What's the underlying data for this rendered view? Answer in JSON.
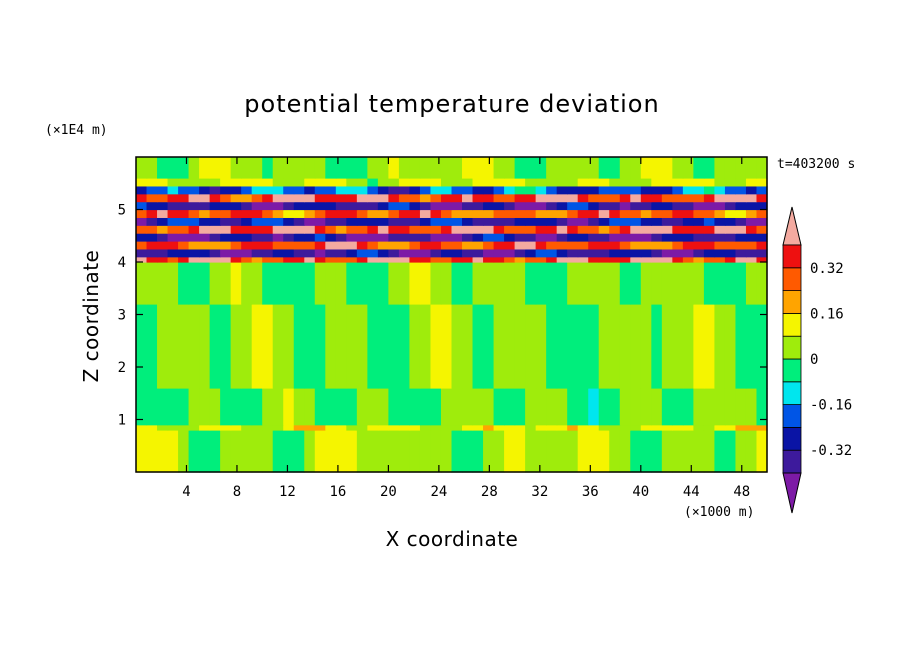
{
  "chart_data": {
    "type": "heatmap",
    "title": "potential temperature deviation",
    "xlabel": "X coordinate",
    "ylabel": "Z coordinate",
    "x_unit": "(×1000 m)",
    "y_unit": "(×1E4 m)",
    "time_label": "t=403200 s",
    "xlim": [
      0,
      50
    ],
    "ylim": [
      0,
      6
    ],
    "x_ticks": [
      4,
      8,
      12,
      16,
      20,
      24,
      28,
      32,
      36,
      40,
      44,
      48
    ],
    "y_ticks": [
      1,
      2,
      3,
      4,
      5
    ],
    "colorbar": {
      "levels": [
        -0.4,
        -0.32,
        -0.24,
        -0.16,
        -0.08,
        0,
        0.08,
        0.16,
        0.24,
        0.32,
        0.4
      ],
      "tick_labels": [
        "-0.32",
        "-0.16",
        "0",
        "0.16",
        "0.32"
      ],
      "tick_values": [
        -0.32,
        -0.16,
        0,
        0.16,
        0.32
      ],
      "colors": [
        "#7d1aa6",
        "#3d1a9c",
        "#0a14a5",
        "#0055e6",
        "#00e6ee",
        "#00ee7c",
        "#9fec0c",
        "#f5f500",
        "#ffa400",
        "#ff5a00",
        "#ee1010",
        "#f4aaa0"
      ]
    },
    "bands": [
      {
        "z": [
          0.0,
          0.8
        ],
        "value": 0.04
      },
      {
        "z": [
          0.8,
          0.9
        ],
        "value": 0.1
      },
      {
        "z": [
          0.9,
          1.6
        ],
        "value": 0.0
      },
      {
        "z": [
          1.6,
          3.2
        ],
        "value": 0.02
      },
      {
        "z": [
          3.2,
          4.0
        ],
        "value": 0.01
      },
      {
        "z": [
          4.0,
          4.1
        ],
        "value": 0.36
      },
      {
        "z": [
          4.1,
          4.25
        ],
        "value": -0.34
      },
      {
        "z": [
          4.25,
          4.4
        ],
        "value": 0.3
      },
      {
        "z": [
          4.4,
          4.55
        ],
        "value": -0.36
      },
      {
        "z": [
          4.55,
          4.7
        ],
        "value": 0.36
      },
      {
        "z": [
          4.7,
          4.85
        ],
        "value": -0.3
      },
      {
        "z": [
          4.85,
          5.0
        ],
        "value": 0.28
      },
      {
        "z": [
          5.0,
          5.15
        ],
        "value": -0.34
      },
      {
        "z": [
          5.15,
          5.3
        ],
        "value": 0.36
      },
      {
        "z": [
          5.3,
          5.45
        ],
        "value": -0.2
      },
      {
        "z": [
          5.45,
          5.6
        ],
        "value": 0.08
      },
      {
        "z": [
          5.6,
          6.0
        ],
        "value": 0.03
      }
    ]
  }
}
